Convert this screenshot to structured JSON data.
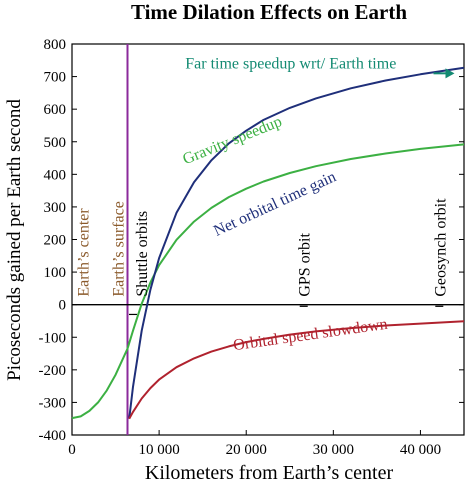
{
  "chart_data": {
    "type": "line",
    "title": "Time Dilation Effects on Earth",
    "xlabel": "Kilometers from Earth’s center",
    "ylabel": "Picoseconds gained per Earth second",
    "xlim": [
      0,
      45000
    ],
    "ylim": [
      -400,
      800
    ],
    "grid": false,
    "x_ticks": [
      {
        "value": 0,
        "label": "0"
      },
      {
        "value": 10000,
        "label": "10 000"
      },
      {
        "value": 20000,
        "label": "20 000"
      },
      {
        "value": 30000,
        "label": "30 000"
      },
      {
        "value": 40000,
        "label": "40 000"
      }
    ],
    "y_ticks": [
      {
        "value": 800,
        "label": "800"
      },
      {
        "value": 700,
        "label": "700"
      },
      {
        "value": 600,
        "label": "600"
      },
      {
        "value": 500,
        "label": "500"
      },
      {
        "value": 400,
        "label": "400"
      },
      {
        "value": 300,
        "label": "300"
      },
      {
        "value": 200,
        "label": "200"
      },
      {
        "value": 100,
        "label": "100"
      },
      {
        "value": 0,
        "label": "0"
      },
      {
        "value": -100,
        "label": "-100"
      },
      {
        "value": -200,
        "label": "-200"
      },
      {
        "value": -300,
        "label": "-300"
      },
      {
        "value": -400,
        "label": "-400"
      }
    ],
    "series": [
      {
        "name": "Gravity speedup",
        "color": "#3cb043",
        "x": [
          0,
          1000,
          2000,
          3000,
          4000,
          5000,
          6371,
          7000,
          8000,
          9000,
          10000,
          12000,
          14000,
          16000,
          18000,
          20000,
          22000,
          25000,
          28000,
          32000,
          36000,
          40000,
          45000
        ],
        "values": [
          -348,
          -343,
          -326,
          -300,
          -263,
          -215,
          -135,
          -80,
          3,
          68,
          121,
          199,
          255,
          297,
          330,
          356,
          378,
          404,
          425,
          447,
          464,
          478,
          492
        ]
      },
      {
        "name": "Net orbital time gain",
        "color": "#1f2f7a",
        "x": [
          6571,
          7000,
          8000,
          9000,
          10000,
          12000,
          14000,
          16000,
          18000,
          20000,
          22000,
          25000,
          28000,
          32000,
          36000,
          40000,
          45000
        ],
        "values": [
          -350,
          -252,
          -80,
          46,
          143,
          282,
          376,
          443,
          495,
          534,
          567,
          604,
          633,
          664,
          688,
          707,
          727
        ]
      },
      {
        "name": "Orbital speed slowdown",
        "color": "#b0222e",
        "x": [
          6571,
          7000,
          8000,
          9000,
          10000,
          12000,
          14000,
          16000,
          18000,
          20000,
          22000,
          25000,
          28000,
          32000,
          36000,
          40000,
          45000
        ],
        "values": [
          -350,
          -329,
          -288,
          -256,
          -230,
          -192,
          -165,
          -144,
          -128,
          -115,
          -105,
          -92,
          -82,
          -72,
          -64,
          -58,
          -51
        ]
      }
    ],
    "reference_lines": [
      {
        "orientation": "vertical",
        "x": 6371,
        "label": "Earth’s surface",
        "color": "#8b2a9b"
      },
      {
        "orientation": "horizontal",
        "y": 0,
        "color": "#000000"
      }
    ],
    "vertical_annotations": [
      {
        "x": 1200,
        "label": "Earth’s center",
        "color": "#8b5a2b"
      },
      {
        "x": 5200,
        "label": "Earth’s surface",
        "color": "#8b5a2b"
      },
      {
        "x": 7900,
        "label": "Shuttle orbits",
        "color": "#000000"
      },
      {
        "x": 26600,
        "label": "GPS orbit",
        "color": "#000000"
      },
      {
        "x": 42164,
        "label": "Geosynch orbit",
        "color": "#000000"
      }
    ],
    "marker_ticks": [
      {
        "x": 7000,
        "y": -30
      },
      {
        "x": 26600,
        "y": -5
      },
      {
        "x": 42164,
        "y": -5
      }
    ],
    "annotations": [
      {
        "text": "Far time speedup wrt/ Earth time",
        "color": "#138a72",
        "x": 13000,
        "y": 725
      },
      {
        "text": "Gravity speedup",
        "color": "#3cb043",
        "x": 13000,
        "y": 430,
        "rotate": -22
      },
      {
        "text": "Net orbital time gain",
        "color": "#1f2f7a",
        "x": 16600,
        "y": 210,
        "rotate": -25
      },
      {
        "text": "Orbital speed slowdown",
        "color": "#b0222e",
        "x": 18600,
        "y": -140,
        "rotate": -8
      }
    ]
  }
}
